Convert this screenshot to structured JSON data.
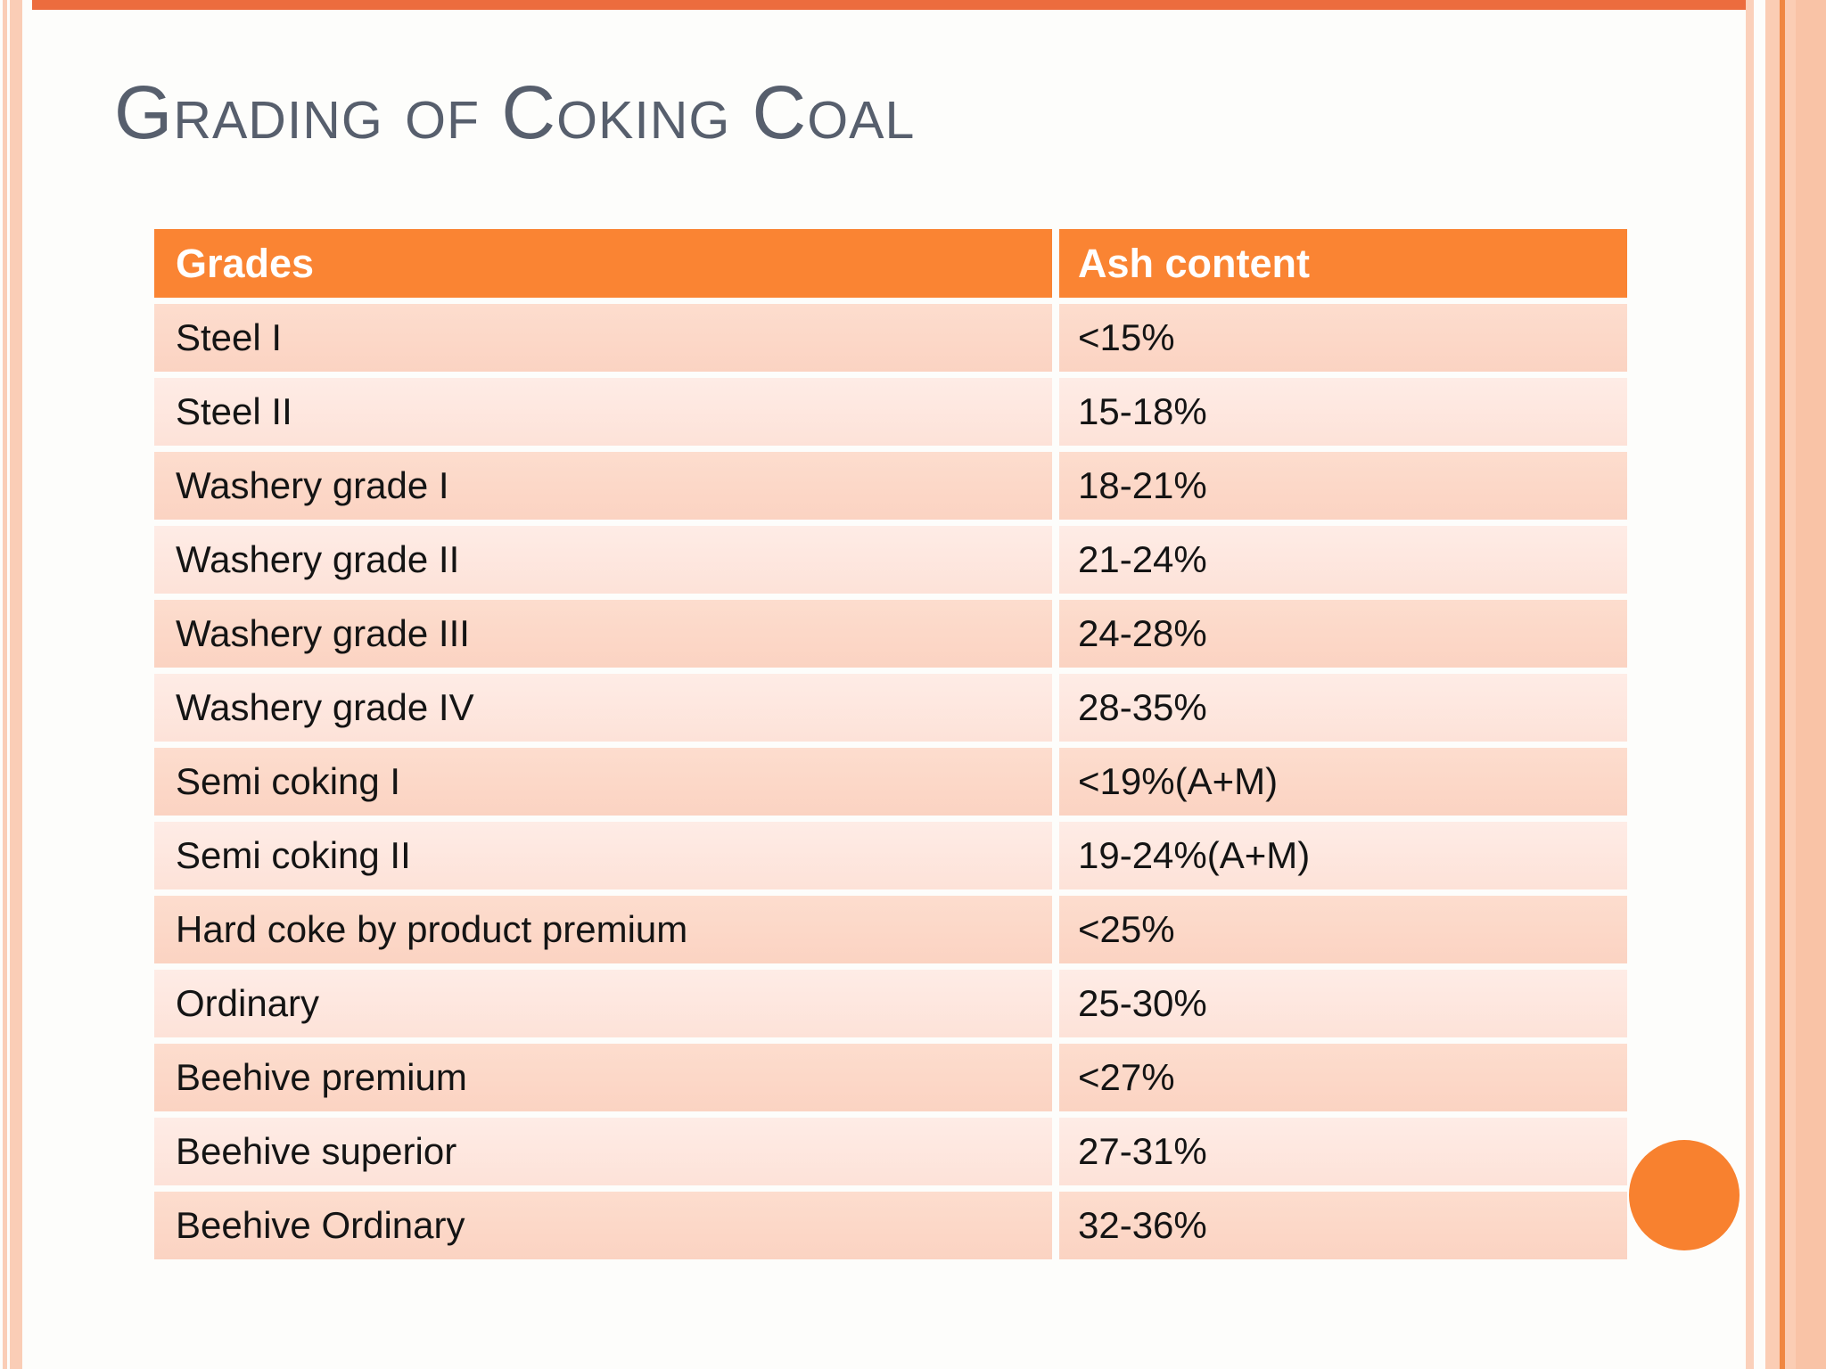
{
  "slide": {
    "title": "Grading of Coking Coal",
    "table": {
      "headers": [
        "Grades",
        "Ash content"
      ],
      "rows": [
        {
          "grade": "Steel I",
          "ash": "<15%"
        },
        {
          "grade": "Steel II",
          "ash": "15-18%"
        },
        {
          "grade": "Washery grade I",
          "ash": "18-21%"
        },
        {
          "grade": "Washery grade II",
          "ash": "21-24%"
        },
        {
          "grade": "Washery grade III",
          "ash": "24-28%"
        },
        {
          "grade": "Washery grade IV",
          "ash": "28-35%"
        },
        {
          "grade": "Semi coking I",
          "ash": "<19%(A+M)"
        },
        {
          "grade": "Semi coking II",
          "ash": "19-24%(A+M)"
        },
        {
          "grade": "Hard coke by product premium",
          "ash": "<25%"
        },
        {
          "grade": "Ordinary",
          "ash": "25-30%"
        },
        {
          "grade": "Beehive premium",
          "ash": "<27%"
        },
        {
          "grade": "Beehive superior",
          "ash": "27-31%"
        },
        {
          "grade": "Beehive Ordinary",
          "ash": "32-36%"
        }
      ]
    },
    "colors": {
      "header_orange": "#FA8433",
      "row_dark_peach": "#FBD8C7",
      "row_light_peach": "#FDE9E1",
      "title_gray": "#575F6D",
      "edge_stripe_peach": "#FACDB6",
      "edge_line_orange": "#F08742",
      "top_rule_orange": "#EC6C3E",
      "accent_circle_orange": "#F8812F"
    }
  }
}
